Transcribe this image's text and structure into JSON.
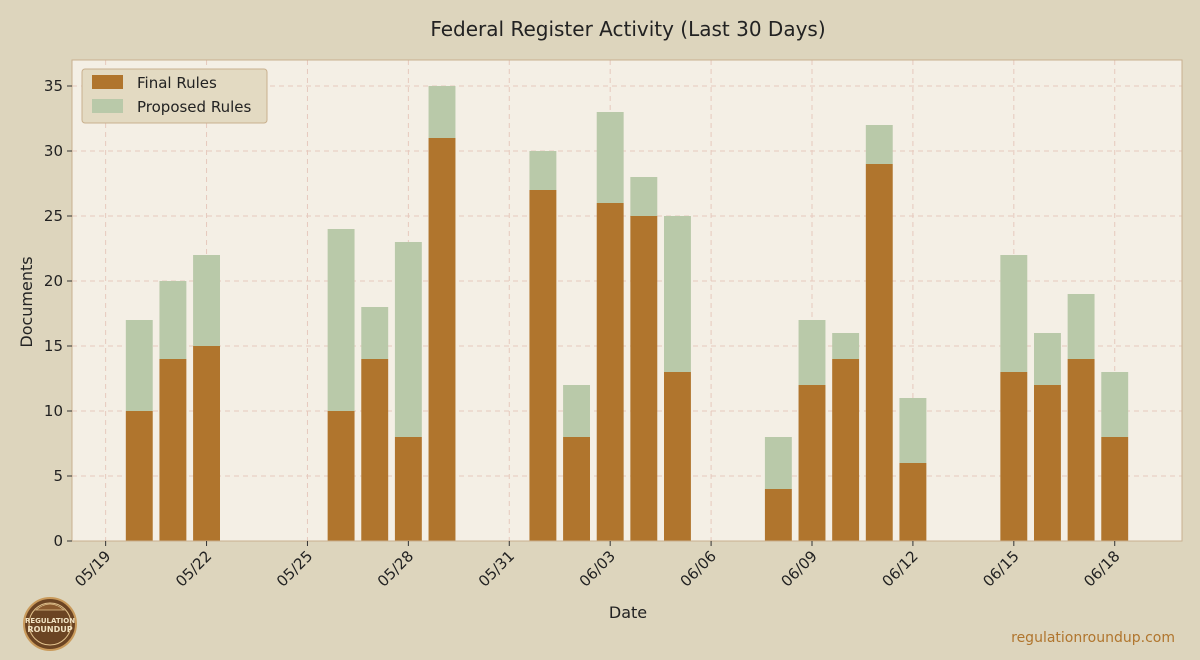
{
  "colors": {
    "background": "#ddd5bd",
    "plot_bg": "#f4efe5",
    "final": "#b0752d",
    "proposed": "#b9c9a9",
    "grid": "#e6c9bd",
    "frame": "#c9b08e",
    "watermark": "#b0752d"
  },
  "logo": {
    "line1": "REGULATION",
    "line2": "ROUNDUP"
  },
  "watermark": "regulationroundup.com",
  "chart_data": {
    "type": "bar",
    "stacked": true,
    "title": "Federal Register Activity (Last 30 Days)",
    "xlabel": "Date",
    "ylabel": "Documents",
    "ylim": [
      0,
      37
    ],
    "yticks": [
      0,
      5,
      10,
      15,
      20,
      25,
      30,
      35
    ],
    "xlim": [
      "05/18",
      "06/20"
    ],
    "xticks": [
      "05/19",
      "05/22",
      "05/25",
      "05/28",
      "05/31",
      "06/03",
      "06/06",
      "06/09",
      "06/12",
      "06/15",
      "06/18"
    ],
    "grid": true,
    "legend_position": "top-left",
    "categories": [
      "05/20",
      "05/21",
      "05/22",
      "05/26",
      "05/27",
      "05/28",
      "05/29",
      "06/01",
      "06/02",
      "06/03",
      "06/04",
      "06/05",
      "06/08",
      "06/09",
      "06/10",
      "06/11",
      "06/12",
      "06/15",
      "06/16",
      "06/17",
      "06/18"
    ],
    "series": [
      {
        "name": "Final Rules",
        "values": [
          10,
          14,
          15,
          10,
          14,
          8,
          31,
          27,
          8,
          26,
          25,
          13,
          4,
          12,
          14,
          29,
          6,
          13,
          12,
          14,
          8
        ]
      },
      {
        "name": "Proposed Rules",
        "values": [
          7,
          6,
          7,
          14,
          4,
          15,
          4,
          3,
          4,
          7,
          3,
          12,
          4,
          5,
          2,
          3,
          5,
          9,
          4,
          5,
          5
        ]
      }
    ]
  }
}
